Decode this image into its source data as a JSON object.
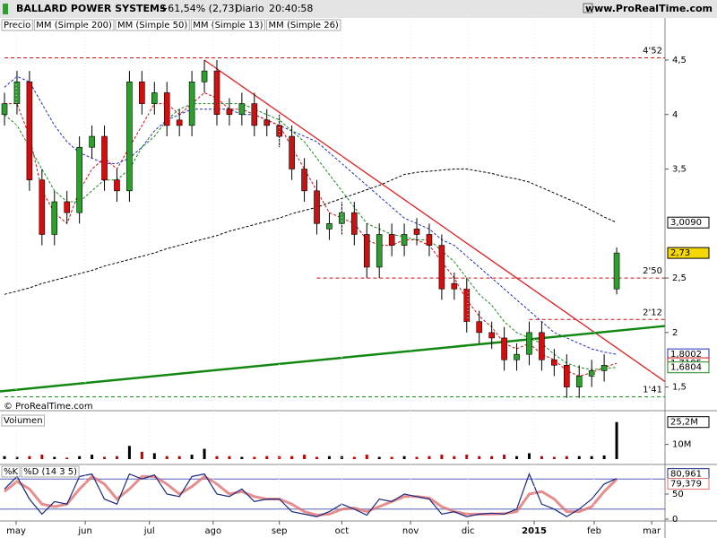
{
  "header": {
    "title": "BALLARD POWER SYSTEMS",
    "change": "+61,54% (2,73)",
    "period": "Diario",
    "time": "20:40:58",
    "site": "www.ProRealTime.com"
  },
  "watermark": "© ProRealTime.com",
  "chart_data": [
    {
      "type": "candlestick",
      "name": "Precio",
      "up_color": "#2e9e2e",
      "down_color": "#d01010",
      "last_label": "2,73",
      "open": [
        4.0,
        4.1,
        4.3,
        3.4,
        2.9,
        3.2,
        3.1,
        3.7,
        3.8,
        3.4,
        3.3,
        4.3,
        4.1,
        4.2,
        3.95,
        3.9,
        4.3,
        4.4,
        4.05,
        4.0,
        4.1,
        3.95,
        3.9,
        3.8,
        3.5,
        3.3,
        2.95,
        3.0,
        3.1,
        2.9,
        2.6,
        2.9,
        2.8,
        2.95,
        2.9,
        2.8,
        2.45,
        2.4,
        2.1,
        2.0,
        1.95,
        1.75,
        1.8,
        2.0,
        1.75,
        1.7,
        1.5,
        1.6,
        1.65,
        2.4
      ],
      "high": [
        4.2,
        4.4,
        4.4,
        3.5,
        3.3,
        3.3,
        3.8,
        3.9,
        3.9,
        3.5,
        4.4,
        4.4,
        4.3,
        4.3,
        4.05,
        4.4,
        4.5,
        4.5,
        4.15,
        4.2,
        4.2,
        4.05,
        4.0,
        3.9,
        3.6,
        3.4,
        3.1,
        3.2,
        3.2,
        3.0,
        3.0,
        3.0,
        3.0,
        3.05,
        3.0,
        2.9,
        2.55,
        2.5,
        2.2,
        2.1,
        2.05,
        1.9,
        2.1,
        2.1,
        1.85,
        1.8,
        1.7,
        1.75,
        1.8,
        2.78
      ],
      "low": [
        3.9,
        4.0,
        3.3,
        2.8,
        2.8,
        3.0,
        3.0,
        3.6,
        3.3,
        3.2,
        3.2,
        4.0,
        4.0,
        3.8,
        3.8,
        3.8,
        4.2,
        3.9,
        3.9,
        3.9,
        3.8,
        3.8,
        3.7,
        3.4,
        3.2,
        2.9,
        2.85,
        2.9,
        2.8,
        2.5,
        2.5,
        2.7,
        2.7,
        2.8,
        2.7,
        2.3,
        2.3,
        2.0,
        1.9,
        1.85,
        1.65,
        1.65,
        1.7,
        1.65,
        1.6,
        1.4,
        1.4,
        1.5,
        1.55,
        2.35
      ],
      "close": [
        4.1,
        4.3,
        3.4,
        2.9,
        3.2,
        3.1,
        3.7,
        3.8,
        3.4,
        3.3,
        4.3,
        4.1,
        4.2,
        3.9,
        3.9,
        4.3,
        4.4,
        4.0,
        4.0,
        4.1,
        3.9,
        3.9,
        3.8,
        3.5,
        3.3,
        3.0,
        3.0,
        3.1,
        2.9,
        2.6,
        2.9,
        2.8,
        2.9,
        2.9,
        2.8,
        2.4,
        2.4,
        2.1,
        2.0,
        1.95,
        1.75,
        1.8,
        2.0,
        1.75,
        1.7,
        1.5,
        1.6,
        1.65,
        1.7,
        2.73
      ],
      "series": [
        {
          "name": "MM (Simple 200)",
          "color": "#000000",
          "last_label": "3,0090",
          "values": [
            2.35,
            2.38,
            2.41,
            2.45,
            2.48,
            2.51,
            2.54,
            2.57,
            2.61,
            2.64,
            2.67,
            2.7,
            2.73,
            2.77,
            2.8,
            2.83,
            2.86,
            2.89,
            2.93,
            2.96,
            2.99,
            3.02,
            3.05,
            3.09,
            3.12,
            3.15,
            3.19,
            3.23,
            3.27,
            3.31,
            3.35,
            3.4,
            3.45,
            3.47,
            3.48,
            3.49,
            3.5,
            3.5,
            3.48,
            3.46,
            3.43,
            3.41,
            3.38,
            3.33,
            3.28,
            3.23,
            3.18,
            3.12,
            3.06,
            3.009
          ]
        },
        {
          "name": "MM (Simple 50)",
          "color": "#1f2fbf",
          "last_label": "1,8002",
          "values": [
            4.25,
            4.35,
            4.3,
            4.1,
            3.9,
            3.75,
            3.65,
            3.6,
            3.55,
            3.55,
            3.6,
            3.7,
            3.85,
            3.95,
            4.0,
            4.05,
            4.05,
            4.05,
            4.05,
            4.0,
            4.0,
            3.95,
            3.9,
            3.85,
            3.8,
            3.75,
            3.65,
            3.55,
            3.45,
            3.35,
            3.25,
            3.15,
            3.05,
            3.0,
            2.95,
            2.85,
            2.8,
            2.7,
            2.6,
            2.5,
            2.4,
            2.3,
            2.2,
            2.1,
            2.0,
            1.95,
            1.9,
            1.85,
            1.82,
            1.8002
          ]
        },
        {
          "name": "MM (Simple 13)",
          "color": "#d01010",
          "last_label": "1,7185",
          "values": [
            4.1,
            4.1,
            3.8,
            3.3,
            3.1,
            3.0,
            3.3,
            3.5,
            3.6,
            3.5,
            3.7,
            3.9,
            4.1,
            4.1,
            4.0,
            4.1,
            4.2,
            4.15,
            4.05,
            4.05,
            4.0,
            3.95,
            3.9,
            3.7,
            3.5,
            3.3,
            3.1,
            3.05,
            3.0,
            2.85,
            2.8,
            2.8,
            2.85,
            2.85,
            2.8,
            2.65,
            2.5,
            2.3,
            2.15,
            2.05,
            1.9,
            1.85,
            1.9,
            1.8,
            1.75,
            1.65,
            1.6,
            1.63,
            1.68,
            1.7185
          ]
        },
        {
          "name": "MM (Simple 26)",
          "color": "#1a8a1a",
          "last_label": "1,6804",
          "values": [
            4.0,
            3.9,
            3.7,
            3.5,
            3.3,
            3.2,
            3.2,
            3.3,
            3.4,
            3.4,
            3.5,
            3.7,
            3.8,
            3.95,
            4.05,
            4.1,
            4.1,
            4.1,
            4.1,
            4.1,
            4.05,
            4.0,
            3.95,
            3.85,
            3.75,
            3.6,
            3.45,
            3.3,
            3.15,
            3.0,
            2.95,
            2.9,
            2.88,
            2.85,
            2.85,
            2.75,
            2.65,
            2.5,
            2.35,
            2.25,
            2.1,
            2.0,
            1.95,
            1.9,
            1.8,
            1.72,
            1.68,
            1.66,
            1.67,
            1.6804
          ]
        }
      ],
      "trendlines": [
        {
          "color": "#e02020",
          "x": [
            16,
            52.87
          ],
          "y": [
            4.5,
            1.55
          ]
        },
        {
          "color": "#118811",
          "x": [
            -0.36,
            52.87
          ],
          "y": [
            1.46,
            2.06
          ]
        }
      ],
      "levels": [
        {
          "value": 4.52,
          "label": "4'52",
          "from": 0,
          "color": "#d01010"
        },
        {
          "value": 2.5,
          "label": "2'50",
          "from": 25,
          "color": "#d01010"
        },
        {
          "value": 2.12,
          "label": "2'12",
          "from": 42,
          "color": "#d01010"
        },
        {
          "value": 1.41,
          "label": "1'41",
          "from": 0,
          "color": "#118811"
        }
      ],
      "ylim": [
        1.39,
        4.87
      ],
      "yticks": [
        {
          "value": 4.5,
          "label": "4,5"
        },
        4,
        {
          "value": 3.5,
          "label": "3,5"
        },
        {
          "value": 2.5,
          "label": "2,5"
        },
        2,
        {
          "value": 1.5,
          "label": "1,5"
        }
      ]
    },
    {
      "type": "bar",
      "name": "Volumen",
      "last_label": "25,2M",
      "values": [
        2,
        1.5,
        2,
        3,
        1.5,
        1,
        2,
        3,
        1.5,
        2,
        9,
        5,
        4,
        2,
        2,
        3,
        7,
        2,
        2,
        1.5,
        1.5,
        2,
        2,
        2,
        3,
        1.5,
        2,
        2,
        1.5,
        3,
        1.5,
        1.5,
        2,
        1.5,
        2,
        3,
        2,
        3,
        2,
        2,
        3,
        2,
        4,
        2,
        1.5,
        2,
        2,
        2,
        2.5,
        25.2
      ],
      "up_color": "#000000",
      "down_color": "#c00000",
      "ylim": [
        0,
        30.5
      ],
      "yticks": [
        {
          "value": 10,
          "label": "10M"
        }
      ]
    },
    {
      "type": "line",
      "series": [
        {
          "name": "%K",
          "color": "#1a2a80",
          "last_label": "80,961",
          "values": [
            60,
            85,
            40,
            10,
            35,
            30,
            85,
            90,
            40,
            30,
            90,
            80,
            88,
            50,
            45,
            85,
            90,
            50,
            45,
            60,
            35,
            40,
            40,
            15,
            10,
            5,
            15,
            30,
            20,
            8,
            40,
            35,
            50,
            45,
            40,
            10,
            15,
            5,
            10,
            12,
            10,
            20,
            90,
            30,
            20,
            5,
            20,
            40,
            70,
            80.961
          ]
        },
        {
          "name": "%D (14 3 5)",
          "color": "#e07070",
          "last_label": "79,379",
          "values": [
            55,
            75,
            60,
            30,
            25,
            30,
            60,
            85,
            70,
            40,
            60,
            85,
            85,
            70,
            50,
            65,
            85,
            70,
            50,
            55,
            45,
            40,
            40,
            30,
            15,
            8,
            10,
            20,
            22,
            15,
            25,
            35,
            45,
            45,
            42,
            25,
            15,
            10,
            10,
            10,
            11,
            15,
            50,
            55,
            40,
            15,
            15,
            25,
            55,
            79.379
          ]
        }
      ],
      "levels": [
        20,
        80
      ],
      "ylim": [
        0,
        100
      ],
      "yticks": [
        50,
        0
      ],
      "xlim": [
        -0.36,
        52.87
      ],
      "xticks": [
        {
          "value": 0.93,
          "label": "may"
        },
        {
          "value": 6.46,
          "label": "jun"
        },
        {
          "value": 11.6,
          "label": "jul"
        },
        {
          "value": 16.7,
          "label": "ago"
        },
        {
          "value": 22.0,
          "label": "sep"
        },
        {
          "value": 27.0,
          "label": "oct"
        },
        {
          "value": 32.5,
          "label": "nov"
        },
        {
          "value": 37.1,
          "label": "dic"
        },
        {
          "value": 42.4,
          "label": "2015"
        },
        {
          "value": 47.2,
          "label": "feb"
        },
        {
          "value": 51.8,
          "label": "mar"
        }
      ]
    }
  ]
}
